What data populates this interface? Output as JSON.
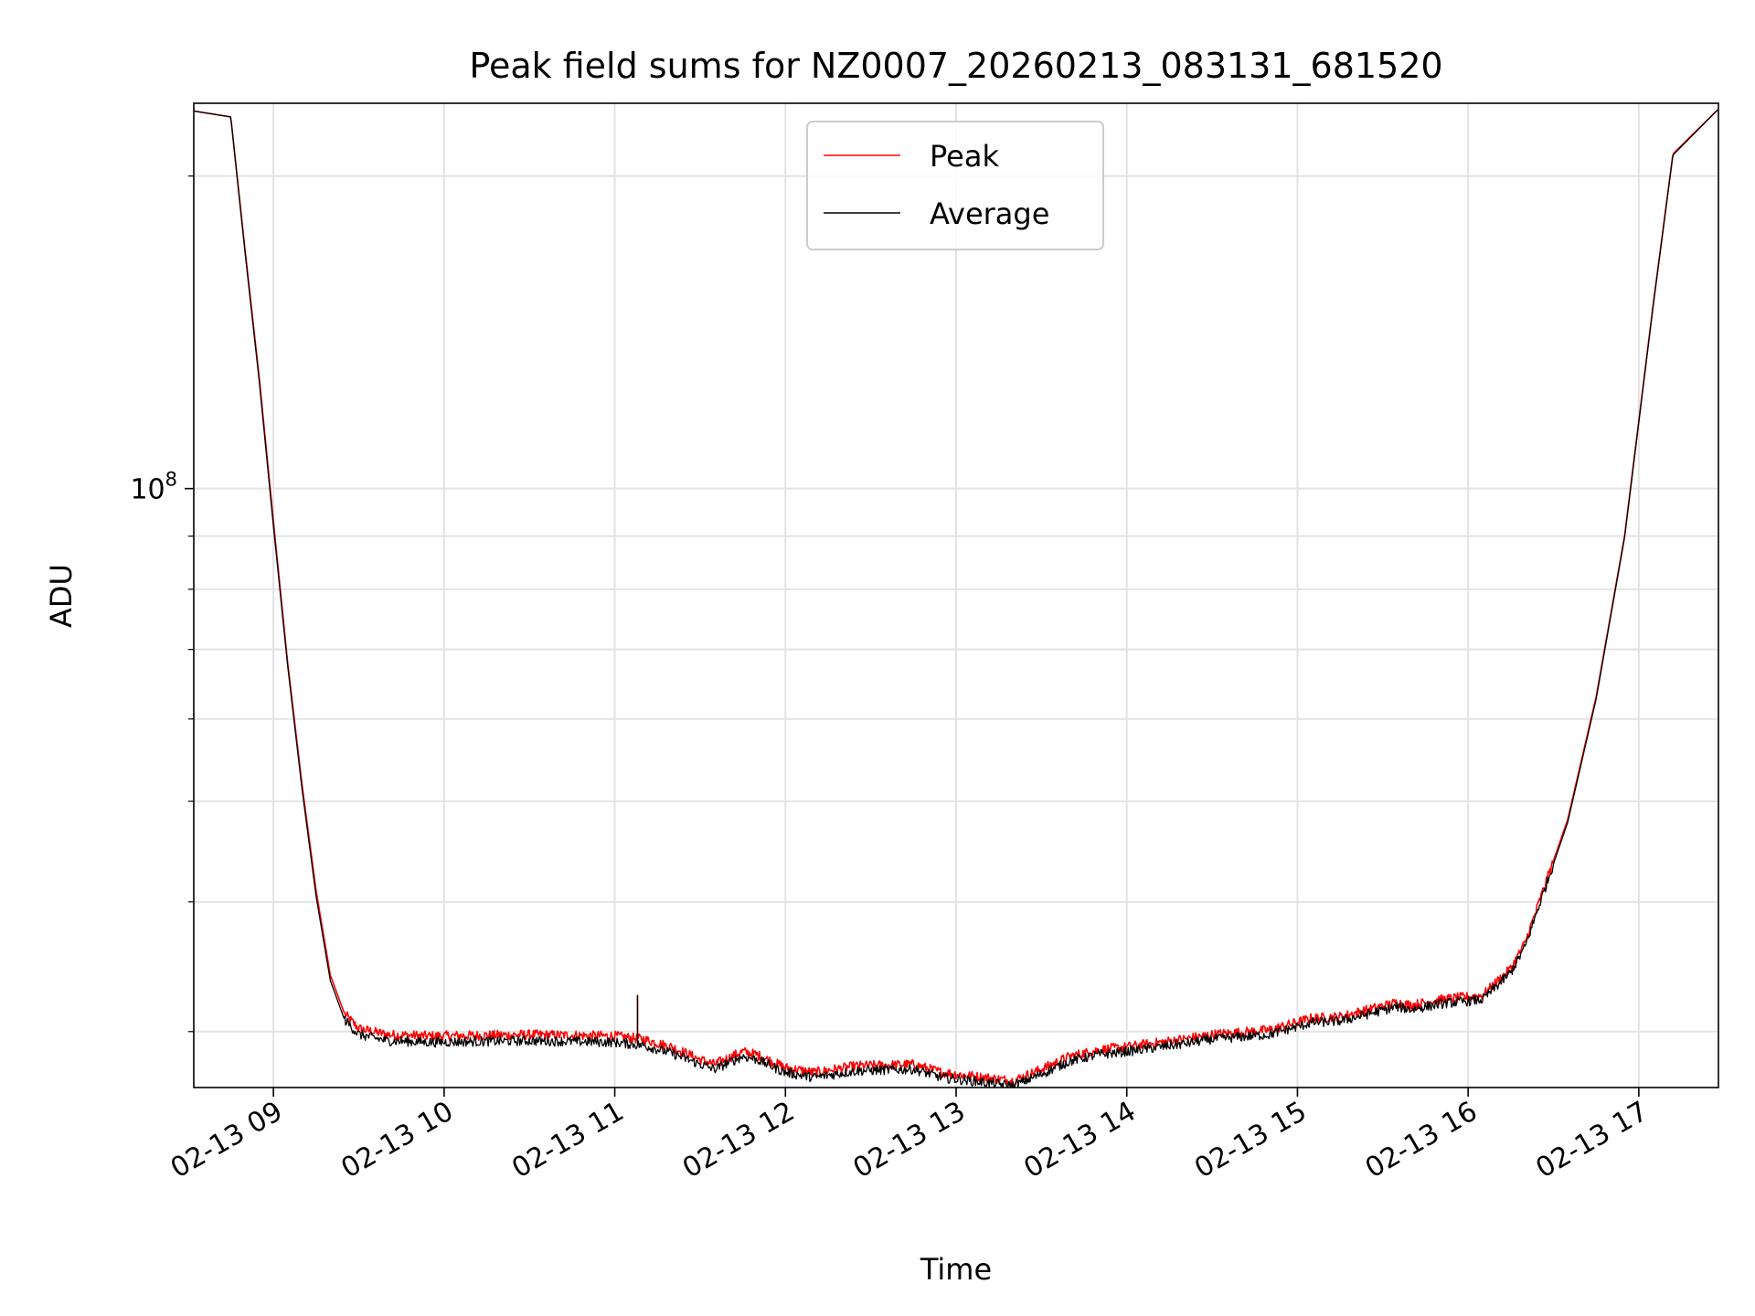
{
  "chart_data": {
    "type": "line",
    "title": "Peak field sums for NZ0007_20260213_083131_681520",
    "xlabel": "Time",
    "ylabel": "ADU",
    "yscale": "log",
    "ylim": [
      26500000,
      235000000
    ],
    "xlim": [
      "2026-02-13 08:32",
      "2026-02-13 17:28"
    ],
    "grid": true,
    "legend": "upper center",
    "x_ticks": [
      {
        "at": "2026-02-13 09:00",
        "label": "02-13 09"
      },
      {
        "at": "2026-02-13 10:00",
        "label": "02-13 10"
      },
      {
        "at": "2026-02-13 11:00",
        "label": "02-13 11"
      },
      {
        "at": "2026-02-13 12:00",
        "label": "02-13 12"
      },
      {
        "at": "2026-02-13 13:00",
        "label": "02-13 13"
      },
      {
        "at": "2026-02-13 14:00",
        "label": "02-13 14"
      },
      {
        "at": "2026-02-13 15:00",
        "label": "02-13 15"
      },
      {
        "at": "2026-02-13 16:00",
        "label": "02-13 16"
      },
      {
        "at": "2026-02-13 17:00",
        "label": "02-13 17"
      }
    ],
    "y_major_ticks": [
      {
        "value": 100000000,
        "base": "10",
        "exp": "8"
      }
    ],
    "y_minor_ticks": [
      30000000,
      40000000,
      50000000,
      60000000,
      70000000,
      80000000,
      90000000,
      200000000
    ],
    "series": [
      {
        "name": "Peak",
        "color": "#ff0000",
        "x": [
          "2026-02-13 08:32",
          "2026-02-13 08:45",
          "2026-02-13 08:50",
          "2026-02-13 08:55",
          "2026-02-13 09:00",
          "2026-02-13 09:05",
          "2026-02-13 09:10",
          "2026-02-13 09:15",
          "2026-02-13 09:20",
          "2026-02-13 09:25",
          "2026-02-13 09:30",
          "2026-02-13 09:40",
          "2026-02-13 09:55",
          "2026-02-13 10:30",
          "2026-02-13 11:00",
          "2026-02-13 11:10",
          "2026-02-13 11:20",
          "2026-02-13 11:30",
          "2026-02-13 11:35",
          "2026-02-13 11:45",
          "2026-02-13 11:50",
          "2026-02-13 12:00",
          "2026-02-13 12:10",
          "2026-02-13 12:25",
          "2026-02-13 12:45",
          "2026-02-13 12:55",
          "2026-02-13 13:10",
          "2026-02-13 13:20",
          "2026-02-13 13:30",
          "2026-02-13 13:40",
          "2026-02-13 13:50",
          "2026-02-13 14:00",
          "2026-02-13 14:20",
          "2026-02-13 14:30",
          "2026-02-13 14:50",
          "2026-02-13 15:05",
          "2026-02-13 15:15",
          "2026-02-13 15:25",
          "2026-02-13 15:35",
          "2026-02-13 15:40",
          "2026-02-13 15:50",
          "2026-02-13 16:05",
          "2026-02-13 16:15",
          "2026-02-13 16:20",
          "2026-02-13 16:25",
          "2026-02-13 16:35",
          "2026-02-13 16:45",
          "2026-02-13 16:55",
          "2026-02-13 17:05",
          "2026-02-13 17:12",
          "2026-02-13 17:28"
        ],
        "values": [
          231000000,
          228000000,
          170000000,
          128000000,
          93000000,
          68000000,
          52000000,
          41000000,
          34000000,
          31200000,
          30200000,
          29800000,
          29700000,
          29800000,
          29700000,
          29500000,
          29000000,
          28200000,
          27900000,
          28700000,
          28500000,
          27700000,
          27400000,
          27800000,
          27900000,
          27400000,
          27100000,
          26900000,
          27600000,
          28400000,
          28800000,
          29000000,
          29500000,
          29800000,
          30100000,
          30900000,
          31000000,
          31500000,
          32000000,
          31800000,
          32200000,
          32500000,
          34500000,
          36500000,
          40000000,
          48000000,
          63000000,
          90000000,
          150000000,
          210000000,
          232000000
        ]
      },
      {
        "name": "Average",
        "color": "#000000",
        "x": [
          "2026-02-13 08:32",
          "2026-02-13 08:45",
          "2026-02-13 08:50",
          "2026-02-13 08:55",
          "2026-02-13 09:00",
          "2026-02-13 09:05",
          "2026-02-13 09:10",
          "2026-02-13 09:15",
          "2026-02-13 09:20",
          "2026-02-13 09:25",
          "2026-02-13 09:30",
          "2026-02-13 09:40",
          "2026-02-13 09:55",
          "2026-02-13 10:30",
          "2026-02-13 11:00",
          "2026-02-13 11:10",
          "2026-02-13 11:20",
          "2026-02-13 11:30",
          "2026-02-13 11:35",
          "2026-02-13 11:45",
          "2026-02-13 11:50",
          "2026-02-13 12:00",
          "2026-02-13 12:10",
          "2026-02-13 12:25",
          "2026-02-13 12:45",
          "2026-02-13 12:55",
          "2026-02-13 13:10",
          "2026-02-13 13:20",
          "2026-02-13 13:30",
          "2026-02-13 13:40",
          "2026-02-13 13:50",
          "2026-02-13 14:00",
          "2026-02-13 14:20",
          "2026-02-13 14:30",
          "2026-02-13 14:50",
          "2026-02-13 15:05",
          "2026-02-13 15:15",
          "2026-02-13 15:25",
          "2026-02-13 15:35",
          "2026-02-13 15:40",
          "2026-02-13 15:50",
          "2026-02-13 16:05",
          "2026-02-13 16:15",
          "2026-02-13 16:20",
          "2026-02-13 16:25",
          "2026-02-13 16:35",
          "2026-02-13 16:45",
          "2026-02-13 16:55",
          "2026-02-13 17:05",
          "2026-02-13 17:12",
          "2026-02-13 17:28"
        ],
        "values": [
          231000000,
          228000000,
          169000000,
          127000000,
          92000000,
          67500000,
          51500000,
          40500000,
          33600000,
          30800000,
          29800000,
          29400000,
          29300000,
          29400000,
          29300000,
          29100000,
          28600000,
          27900000,
          27600000,
          28400000,
          28200000,
          27400000,
          27100000,
          27500000,
          27600000,
          27100000,
          26800000,
          26600000,
          27300000,
          28100000,
          28500000,
          28700000,
          29200000,
          29500000,
          29800000,
          30600000,
          30700000,
          31200000,
          31700000,
          31500000,
          31900000,
          32200000,
          34200000,
          36200000,
          39700000,
          47700000,
          62700000,
          89700000,
          149500000,
          209500000,
          232000000
        ]
      }
    ],
    "annotations": [
      {
        "at": "2026-02-13 11:08",
        "value": 32500000,
        "note": "spike"
      }
    ]
  }
}
